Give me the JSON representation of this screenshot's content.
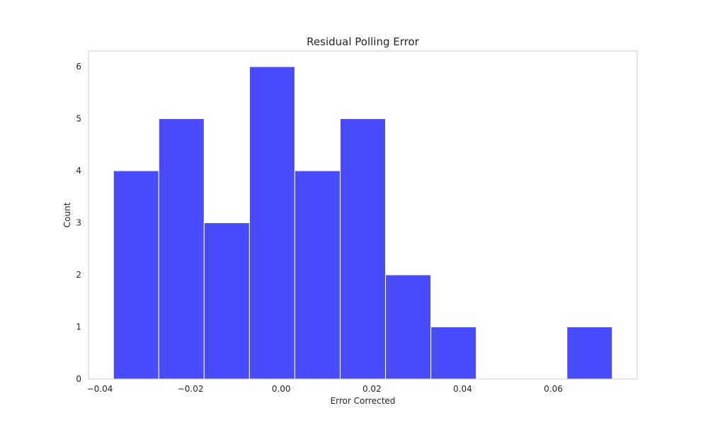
{
  "chart_data": {
    "type": "bar",
    "title": "Residual Polling Error",
    "xlabel": "Error Corrected",
    "ylabel": "Count",
    "xlim": [
      -0.0425,
      0.0785
    ],
    "ylim": [
      0,
      6.3
    ],
    "x_ticks": [
      -0.04,
      -0.02,
      0.0,
      0.02,
      0.04,
      0.06
    ],
    "x_tick_labels": [
      "−0.04",
      "−0.02",
      "0.00",
      "0.02",
      "0.04",
      "0.06"
    ],
    "y_ticks": [
      0,
      1,
      2,
      3,
      4,
      5,
      6
    ],
    "y_tick_labels": [
      "0",
      "1",
      "2",
      "3",
      "4",
      "5",
      "6"
    ],
    "bins": [
      {
        "start": -0.037,
        "end": -0.027,
        "count": 4
      },
      {
        "start": -0.027,
        "end": -0.017,
        "count": 5
      },
      {
        "start": -0.017,
        "end": -0.007,
        "count": 3
      },
      {
        "start": -0.007,
        "end": 0.003,
        "count": 6
      },
      {
        "start": 0.003,
        "end": 0.013,
        "count": 4
      },
      {
        "start": 0.013,
        "end": 0.023,
        "count": 5
      },
      {
        "start": 0.023,
        "end": 0.033,
        "count": 2
      },
      {
        "start": 0.033,
        "end": 0.043,
        "count": 1
      },
      {
        "start": 0.043,
        "end": 0.053,
        "count": 0
      },
      {
        "start": 0.053,
        "end": 0.063,
        "count": 0
      },
      {
        "start": 0.063,
        "end": 0.073,
        "count": 1
      }
    ],
    "bar_color": "#4a4aff",
    "bar_edge_color": "#ffffff",
    "frame_color": "#cccccc",
    "grid": false,
    "legend": false
  }
}
